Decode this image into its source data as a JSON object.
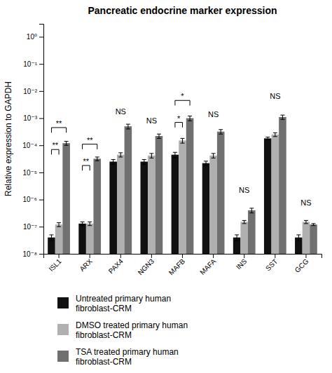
{
  "chart_data": {
    "type": "bar",
    "title": "Pancreatic endocrine marker expression",
    "ylabel": "Relative expression to GAPDH",
    "categories": [
      "ISL1",
      "ARX",
      "PAX4",
      "NGN3",
      "MAFB",
      "MAFA",
      "INS",
      "SST",
      "GCG"
    ],
    "series": [
      {
        "name": "Untreated primary human\nfibroblast-CRM",
        "color": "#111111",
        "values": [
          4e-08,
          1.3e-07,
          2.5e-05,
          2.5e-05,
          4.5e-05,
          2.2e-05,
          4e-08,
          0.00018,
          4e-08
        ],
        "errors": [
          1e-08,
          2e-08,
          5e-06,
          5e-06,
          1e-05,
          4e-06,
          1e-08,
          2e-05,
          1e-08
        ]
      },
      {
        "name": "DMSO treated primary human\nfibroblast-CRM",
        "color": "#b0b0b0",
        "values": [
          1.2e-07,
          1.3e-07,
          4.5e-05,
          4.2e-05,
          0.00015,
          4.2e-05,
          1.5e-07,
          0.00025,
          1.5e-07
        ],
        "errors": [
          2e-08,
          2e-08,
          8e-06,
          8e-06,
          3e-05,
          8e-06,
          2e-08,
          4e-05,
          2e-08
        ]
      },
      {
        "name": "TSA treated primary human\nfibroblast-CRM",
        "color": "#707070",
        "values": [
          0.00012,
          3.2e-05,
          0.0005,
          0.00022,
          0.001,
          0.00032,
          4e-07,
          0.0011,
          1.2e-07
        ],
        "errors": [
          2e-05,
          5e-06,
          0.0001,
          4e-05,
          0.0002,
          6e-05,
          8e-08,
          0.0002,
          1e-08
        ]
      }
    ],
    "log": "y",
    "ylim": [
      1e-08,
      3.0
    ],
    "yticks": [
      {
        "value": 1e-08,
        "label": "10⁻⁸"
      },
      {
        "value": 1e-07,
        "label": "10⁻⁷"
      },
      {
        "value": 1e-06,
        "label": "10⁻⁶"
      },
      {
        "value": 1e-05,
        "label": "10⁻⁵"
      },
      {
        "value": 0.0001,
        "label": "10⁻⁴"
      },
      {
        "value": 0.001,
        "label": "10⁻³"
      },
      {
        "value": 0.01,
        "label": "10⁻²"
      },
      {
        "value": 0.1,
        "label": "10⁻¹"
      },
      {
        "value": 1,
        "label": "10⁰"
      }
    ],
    "grid": false,
    "legend": "bottom",
    "annotations": [
      {
        "text": "**",
        "category": "ISL1",
        "series": [
          0,
          2
        ],
        "y": 0.00045
      },
      {
        "text": "**",
        "category": "ISL1",
        "series": [
          0,
          1
        ],
        "y": 7e-05
      },
      {
        "text": "**",
        "category": "ARX",
        "series": [
          0,
          2
        ],
        "y": 0.00011
      },
      {
        "text": "**",
        "category": "ARX",
        "series": [
          0,
          1
        ],
        "y": 1.8e-05
      },
      {
        "text": "NS",
        "category": "PAX4",
        "y": 0.0014
      },
      {
        "text": "NS",
        "category": "NGN3",
        "y": 0.00065
      },
      {
        "text": "*",
        "category": "MAFB",
        "series": [
          0,
          2
        ],
        "y": 0.0045
      },
      {
        "text": "*",
        "category": "MAFB",
        "series": [
          0,
          1
        ],
        "y": 0.0007
      },
      {
        "text": "NS",
        "category": "MAFA",
        "y": 0.0011
      },
      {
        "text": "NS",
        "category": "INS",
        "y": 1.8e-06
      },
      {
        "text": "NS",
        "category": "SST",
        "y": 0.005
      },
      {
        "text": "NS",
        "category": "GCG",
        "y": 6e-07
      }
    ]
  }
}
